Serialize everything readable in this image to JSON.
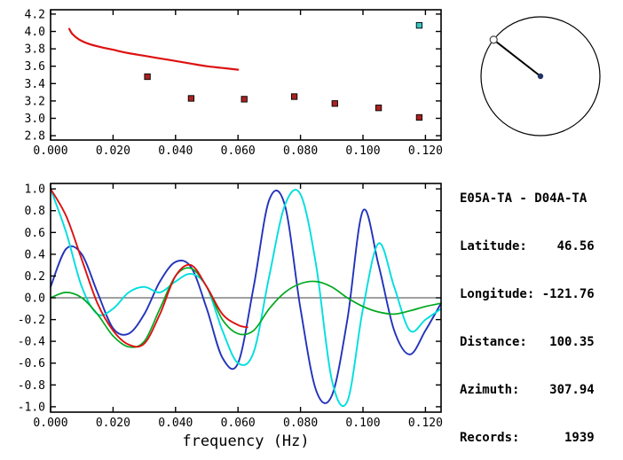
{
  "info_panel": {
    "lines": [
      "E05A-TA - D04A-TA",
      "Latitude:    46.56",
      "Longitude: -121.76",
      "Distance:   100.35",
      "Azimuth:    307.94",
      "Records:      1939"
    ]
  },
  "azimuth_dial": {
    "azimuth_deg": 307.94
  },
  "colors": {
    "red": "#dd1111",
    "dark_red_marker": "#aa2222",
    "cyan_marker": "#3cc6c6",
    "blue": "#2233bb",
    "cyan": "#00dede",
    "green": "#00a820",
    "axis": "#000000"
  },
  "chart_data": [
    {
      "type": "line",
      "title": "",
      "xlabel": "",
      "ylabel": "",
      "xlim": [
        0,
        0.125
      ],
      "ylim": [
        2.75,
        4.25
      ],
      "grid": false,
      "xticks": [
        0.0,
        0.02,
        0.04,
        0.06,
        0.08,
        0.1,
        0.12
      ],
      "xtick_labels": [
        "0.000",
        "0.020",
        "0.040",
        "0.060",
        "0.080",
        "0.100",
        "0.120"
      ],
      "yticks": [
        2.8,
        3.0,
        3.2,
        3.4,
        3.6,
        3.8,
        4.0,
        4.2
      ],
      "ytick_labels": [
        "2.8",
        "3.0",
        "3.2",
        "3.4",
        "3.6",
        "3.8",
        "4.0",
        "4.2"
      ],
      "series": [
        {
          "name": "phase-velocity-curve",
          "kind": "line",
          "color": "#dd1111",
          "width": 2.2,
          "x": [
            0.006,
            0.007,
            0.009,
            0.012,
            0.016,
            0.02,
            0.025,
            0.03,
            0.035,
            0.04,
            0.045,
            0.05,
            0.055,
            0.06
          ],
          "y": [
            4.03,
            3.97,
            3.91,
            3.86,
            3.82,
            3.79,
            3.75,
            3.72,
            3.69,
            3.66,
            3.63,
            3.6,
            3.58,
            3.56
          ]
        },
        {
          "name": "measured-velocity-points",
          "kind": "scatter",
          "marker": "square",
          "color": "#aa2222",
          "x": [
            0.031,
            0.045,
            0.062,
            0.078,
            0.091,
            0.105,
            0.118
          ],
          "y": [
            3.48,
            3.23,
            3.22,
            3.25,
            3.17,
            3.12,
            3.01
          ]
        },
        {
          "name": "outlier-point",
          "kind": "scatter",
          "marker": "square",
          "color": "#3cc6c6",
          "x": [
            0.118
          ],
          "y": [
            4.07
          ]
        }
      ]
    },
    {
      "type": "line",
      "title": "",
      "xlabel": "frequency (Hz)",
      "ylabel": "",
      "xlim": [
        0,
        0.125
      ],
      "ylim": [
        -1.05,
        1.05
      ],
      "grid": false,
      "zero_line": true,
      "xticks": [
        0.0,
        0.02,
        0.04,
        0.06,
        0.08,
        0.1,
        0.12
      ],
      "xtick_labels": [
        "0.000",
        "0.020",
        "0.040",
        "0.060",
        "0.080",
        "0.100",
        "0.120"
      ],
      "yticks": [
        -1.0,
        -0.8,
        -0.6,
        -0.4,
        -0.2,
        0.0,
        0.2,
        0.4,
        0.6,
        0.8,
        1.0
      ],
      "ytick_labels": [
        "-1.0",
        "-0.8",
        "-0.6",
        "-0.4",
        "-0.2",
        "0.0",
        "0.2",
        "0.4",
        "0.6",
        "0.8",
        "1.0"
      ],
      "series": [
        {
          "name": "waveform-blue",
          "kind": "line",
          "color": "#2233bb",
          "width": 1.9,
          "x": [
            0,
            0.005,
            0.01,
            0.015,
            0.02,
            0.025,
            0.03,
            0.035,
            0.04,
            0.045,
            0.05,
            0.055,
            0.06,
            0.065,
            0.07,
            0.075,
            0.08,
            0.085,
            0.09,
            0.095,
            0.1,
            0.105,
            0.11,
            0.115,
            0.12,
            0.125
          ],
          "y": [
            0.1,
            0.45,
            0.4,
            0.05,
            -0.28,
            -0.33,
            -0.15,
            0.15,
            0.33,
            0.28,
            -0.1,
            -0.55,
            -0.6,
            0.1,
            0.9,
            0.85,
            -0.1,
            -0.85,
            -0.9,
            -0.2,
            0.8,
            0.3,
            -0.3,
            -0.52,
            -0.3,
            -0.05
          ]
        },
        {
          "name": "waveform-cyan",
          "kind": "line",
          "color": "#00dede",
          "width": 1.9,
          "x": [
            0,
            0.005,
            0.01,
            0.015,
            0.02,
            0.025,
            0.03,
            0.035,
            0.04,
            0.045,
            0.05,
            0.055,
            0.06,
            0.065,
            0.07,
            0.075,
            0.08,
            0.085,
            0.09,
            0.095,
            0.1,
            0.105,
            0.11,
            0.115,
            0.12,
            0.125
          ],
          "y": [
            1.0,
            0.6,
            0.1,
            -0.15,
            -0.1,
            0.05,
            0.1,
            0.05,
            0.15,
            0.22,
            0.1,
            -0.3,
            -0.6,
            -0.5,
            0.2,
            0.85,
            0.95,
            0.3,
            -0.75,
            -0.95,
            -0.1,
            0.5,
            0.1,
            -0.3,
            -0.2,
            -0.1
          ]
        },
        {
          "name": "waveform-green",
          "kind": "line",
          "color": "#00a820",
          "width": 1.7,
          "x": [
            0,
            0.005,
            0.01,
            0.015,
            0.02,
            0.025,
            0.03,
            0.035,
            0.04,
            0.045,
            0.05,
            0.055,
            0.06,
            0.065,
            0.07,
            0.075,
            0.08,
            0.085,
            0.09,
            0.095,
            0.1,
            0.105,
            0.11,
            0.115,
            0.12,
            0.125
          ],
          "y": [
            0.0,
            0.05,
            0.0,
            -0.15,
            -0.35,
            -0.45,
            -0.4,
            -0.1,
            0.2,
            0.27,
            0.1,
            -0.2,
            -0.33,
            -0.3,
            -0.1,
            0.05,
            0.13,
            0.15,
            0.1,
            0.0,
            -0.08,
            -0.13,
            -0.15,
            -0.12,
            -0.08,
            -0.05
          ]
        },
        {
          "name": "waveform-red",
          "kind": "line",
          "color": "#dd1111",
          "width": 1.9,
          "x": [
            0,
            0.005,
            0.01,
            0.015,
            0.02,
            0.025,
            0.03,
            0.035,
            0.04,
            0.045,
            0.05,
            0.055,
            0.06,
            0.063
          ],
          "y": [
            1.0,
            0.75,
            0.35,
            -0.05,
            -0.3,
            -0.43,
            -0.42,
            -0.15,
            0.2,
            0.3,
            0.1,
            -0.15,
            -0.25,
            -0.27
          ]
        }
      ]
    }
  ]
}
